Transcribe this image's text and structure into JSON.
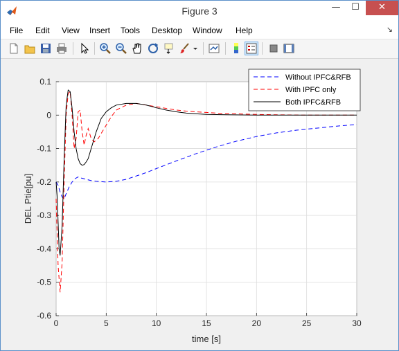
{
  "window": {
    "title": "Figure 3",
    "minimize": "—",
    "maximize": "☐",
    "close": "✕"
  },
  "menu": {
    "items": [
      "File",
      "Edit",
      "View",
      "Insert",
      "Tools",
      "Desktop",
      "Window",
      "Help"
    ],
    "overflow_arrow": "↘"
  },
  "toolbar": {
    "icons": [
      "new-figure-icon",
      "open-file-icon",
      "save-icon",
      "print-icon",
      "edit-plot-arrow-icon",
      "zoom-in-icon",
      "zoom-out-icon",
      "pan-hand-icon",
      "rotate-3d-icon",
      "data-cursor-icon",
      "brush-icon",
      "brush-dropdown-icon",
      "link-plot-icon",
      "insert-colorbar-icon",
      "insert-legend-icon",
      "hide-plot-tools-icon",
      "show-plot-tools-icon"
    ],
    "active_icon": "insert-legend-icon"
  },
  "colors": {
    "blue": "#0000ff",
    "red": "#ff0000",
    "black": "#000000",
    "close_button": "#c75050",
    "grid": "#dcdcdc"
  },
  "chart_data": {
    "type": "line",
    "title": "",
    "xlabel": "time [s]",
    "ylabel": "DEL Ptie[pu]",
    "xlim": [
      0,
      30
    ],
    "ylim": [
      -0.6,
      0.1
    ],
    "xticks": [
      "0",
      "5",
      "10",
      "15",
      "20",
      "25",
      "30"
    ],
    "yticks": [
      "0.1",
      "0",
      "-0.1",
      "-0.2",
      "-0.3",
      "-0.4",
      "-0.5",
      "-0.6"
    ],
    "grid": true,
    "legend_position": "top-right",
    "series": [
      {
        "name": "Without IPFC&RFB",
        "color": "#0000ff",
        "style": "dashed",
        "x": [
          0,
          0.2,
          0.4,
          0.6,
          0.8,
          1,
          1.3,
          1.6,
          1.9,
          2.2,
          2.5,
          3,
          3.5,
          4,
          5,
          6,
          7,
          8,
          9,
          10,
          12,
          14,
          16,
          18,
          20,
          22,
          24,
          26,
          28,
          30
        ],
        "y": [
          -0.2,
          -0.21,
          -0.23,
          -0.245,
          -0.25,
          -0.235,
          -0.215,
          -0.2,
          -0.19,
          -0.185,
          -0.188,
          -0.192,
          -0.196,
          -0.198,
          -0.2,
          -0.198,
          -0.192,
          -0.182,
          -0.172,
          -0.16,
          -0.137,
          -0.115,
          -0.095,
          -0.078,
          -0.064,
          -0.053,
          -0.045,
          -0.039,
          -0.033,
          -0.028
        ]
      },
      {
        "name": "With IPFC only",
        "color": "#ff0000",
        "style": "dashed",
        "x": [
          0,
          0.2,
          0.4,
          0.6,
          0.8,
          1,
          1.2,
          1.4,
          1.6,
          1.8,
          2,
          2.2,
          2.4,
          2.6,
          2.8,
          3,
          3.2,
          3.5,
          3.8,
          4.2,
          4.6,
          5,
          5.5,
          6,
          7,
          8,
          9,
          10,
          11,
          12,
          13,
          14,
          15,
          16,
          17,
          18,
          20,
          22,
          25,
          30
        ],
        "y": [
          -0.25,
          -0.45,
          -0.53,
          -0.44,
          -0.2,
          0.0,
          0.065,
          0.07,
          0.0,
          -0.1,
          -0.07,
          0.01,
          0.015,
          -0.05,
          -0.09,
          -0.06,
          -0.04,
          -0.07,
          -0.08,
          -0.07,
          -0.05,
          -0.03,
          -0.005,
          0.015,
          0.03,
          0.035,
          0.03,
          0.025,
          0.02,
          0.015,
          0.012,
          0.01,
          0.008,
          0.006,
          0.005,
          0.004,
          0.002,
          0.001,
          0.0,
          0.0
        ]
      },
      {
        "name": "Both IPFC&RFB",
        "color": "#000000",
        "style": "solid",
        "x": [
          0,
          0.1,
          0.2,
          0.3,
          0.4,
          0.6,
          0.8,
          1,
          1.2,
          1.4,
          1.6,
          1.8,
          2,
          2.2,
          2.4,
          2.6,
          2.8,
          3,
          3.2,
          3.5,
          4,
          4.5,
          5,
          5.5,
          6,
          7,
          8,
          9,
          10,
          11,
          12,
          13,
          14,
          15,
          17,
          20,
          25,
          30
        ],
        "y": [
          -0.2,
          -0.24,
          -0.32,
          -0.4,
          -0.42,
          -0.33,
          -0.13,
          0.03,
          0.075,
          0.07,
          0.02,
          -0.05,
          -0.1,
          -0.13,
          -0.145,
          -0.15,
          -0.148,
          -0.14,
          -0.13,
          -0.1,
          -0.05,
          -0.01,
          0.01,
          0.022,
          0.03,
          0.035,
          0.035,
          0.03,
          0.022,
          0.015,
          0.01,
          0.006,
          0.004,
          0.002,
          0.001,
          0.0,
          0.0,
          0.0
        ]
      }
    ]
  }
}
